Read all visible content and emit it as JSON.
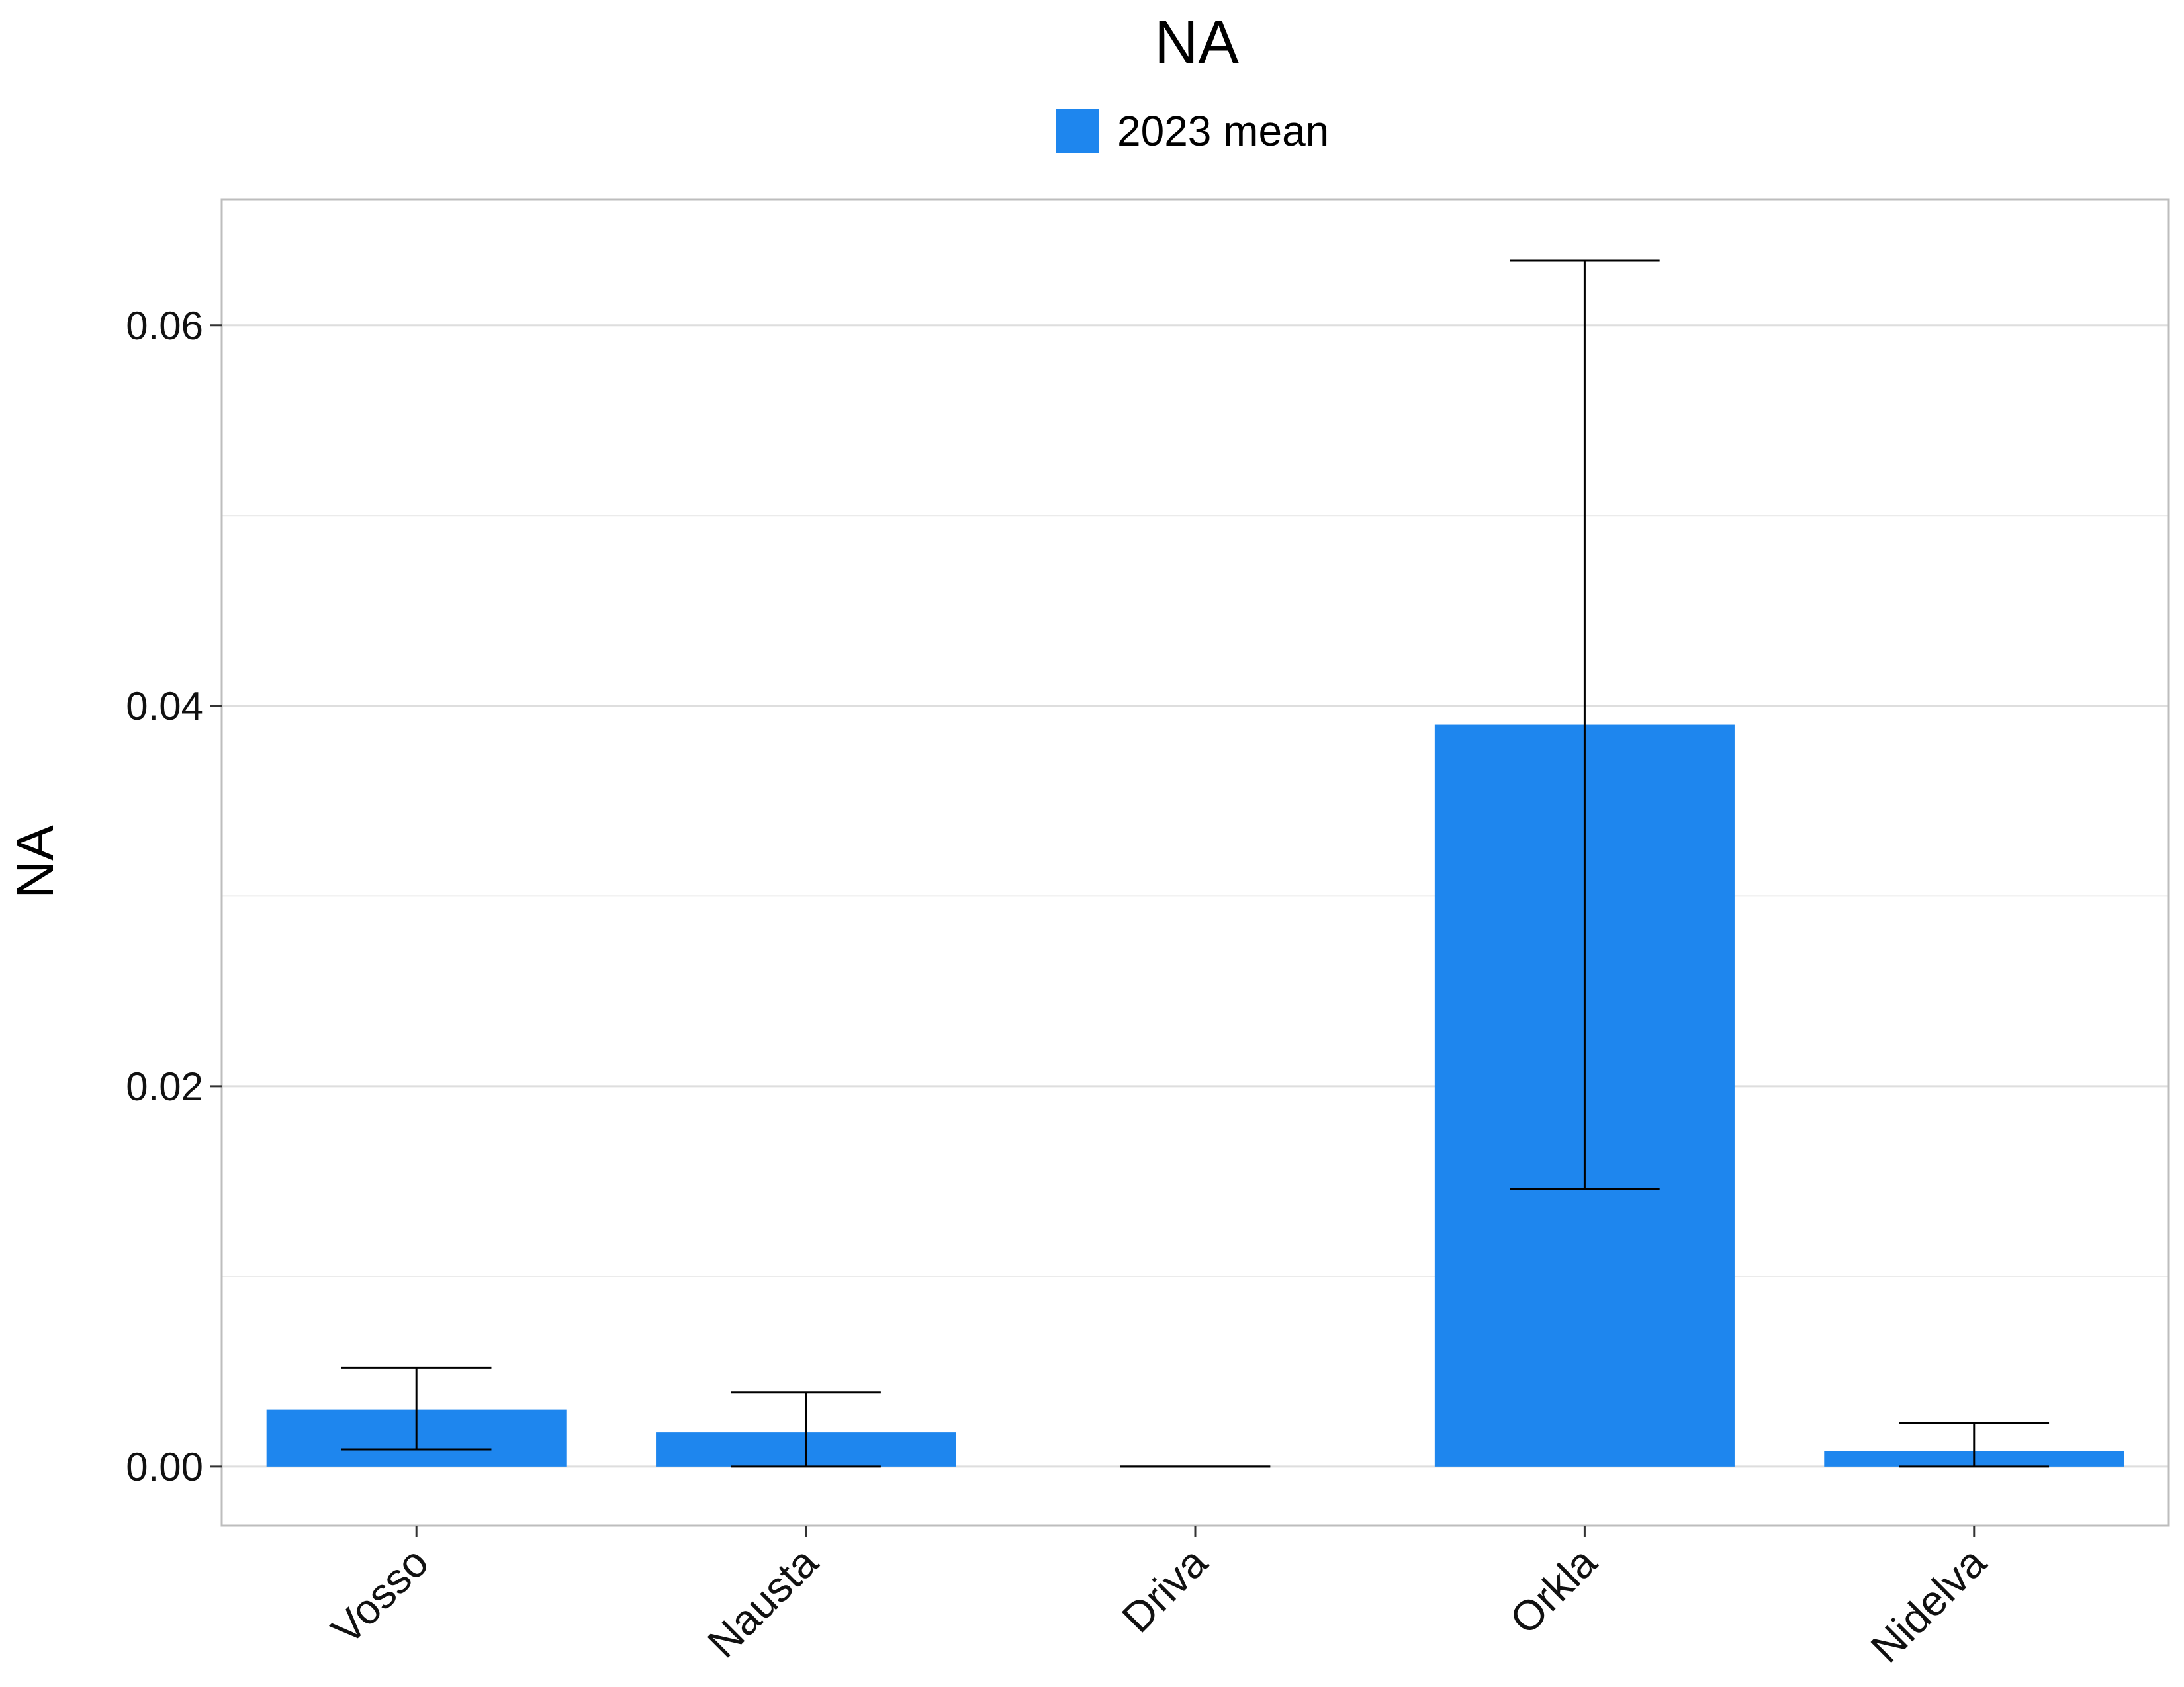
{
  "chart_data": {
    "type": "bar",
    "title": "NA",
    "ylabel": "NA",
    "xlabel": "",
    "categories": [
      "Vosso",
      "Nausta",
      "Driva",
      "Orkla",
      "Nidelva"
    ],
    "series": [
      {
        "name": "2023 mean",
        "color": "#1E86EE",
        "values": [
          0.003,
          0.0018,
          0.0,
          0.039,
          0.0008
        ],
        "error_low": [
          0.0009,
          0.0,
          0.0,
          0.0146,
          0.0
        ],
        "error_high": [
          0.0052,
          0.0039,
          0.0,
          0.0634,
          0.0023
        ]
      }
    ],
    "ylim": [
      -0.0031,
      0.0666
    ],
    "yticks": [
      0.0,
      0.02,
      0.04,
      0.06
    ],
    "ytick_labels": [
      "0.00",
      "0.02",
      "0.04",
      "0.06"
    ],
    "minor_gridlines": [
      0.01,
      0.03,
      0.05
    ],
    "grid": true,
    "legend_position": "top",
    "x_tick_rotation": -45
  }
}
